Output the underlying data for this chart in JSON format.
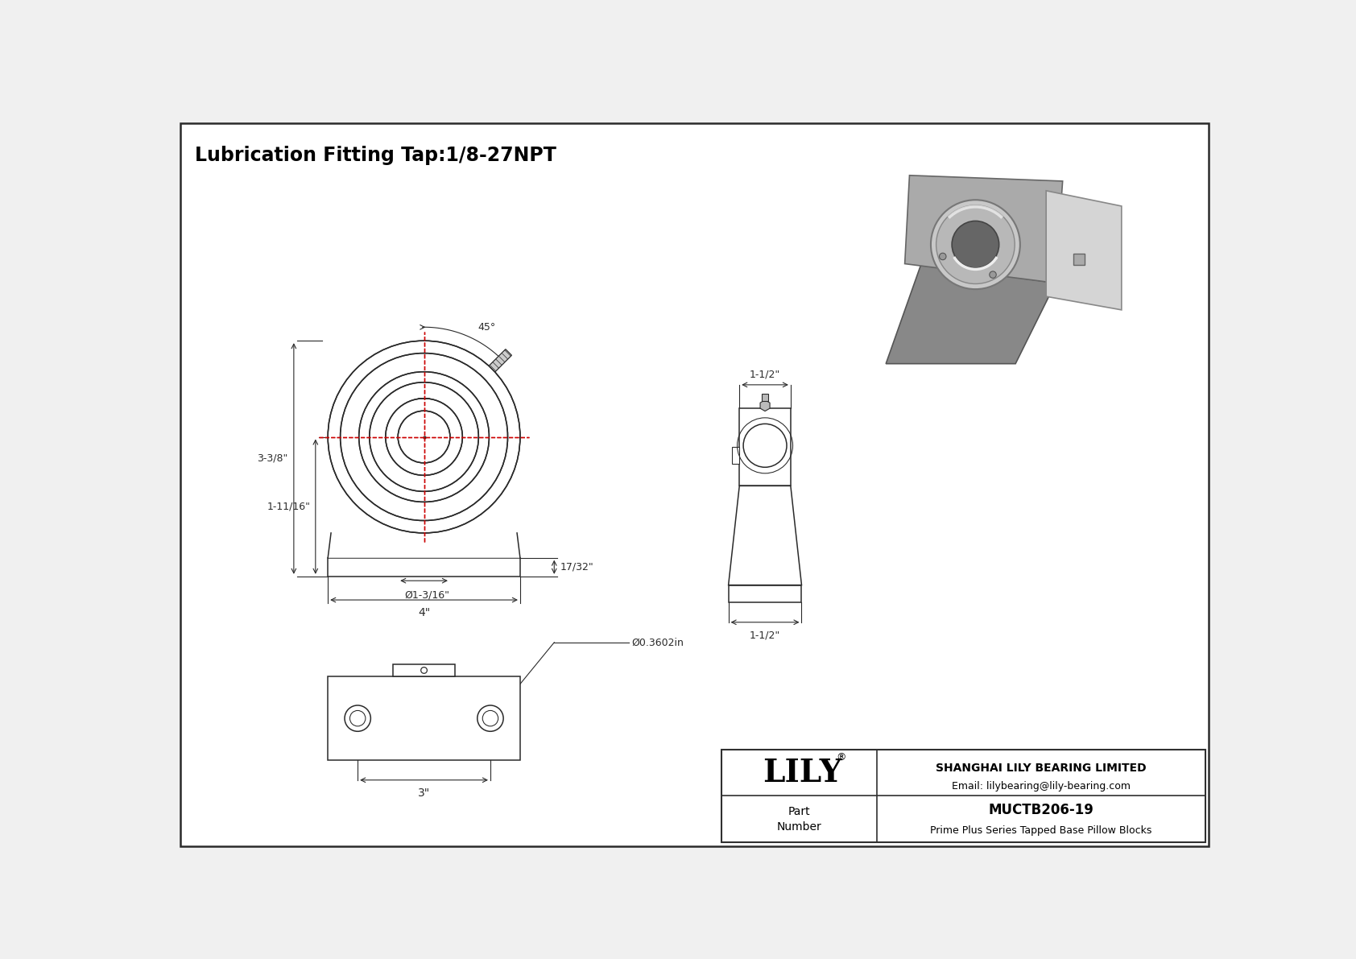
{
  "bg_color": "#f0f0f0",
  "line_color": "#2a2a2a",
  "dim_color": "#2a2a2a",
  "red_color": "#cc0000",
  "title": "Lubrication Fitting Tap:1/8-27NPT",
  "title_fontsize": 17,
  "company": "SHANGHAI LILY BEARING LIMITED",
  "email": "Email: lilybearing@lily-bearing.com",
  "part_label": "Part\nNumber",
  "part_number": "MUCTB206-19",
  "part_desc": "Prime Plus Series Tapped Base Pillow Blocks",
  "lily_text": "LILY",
  "dim_labels": {
    "top_width": "4\"",
    "bearing_dia": "Ø1-3/16\"",
    "height_total": "3-3/8\"",
    "height_base": "1-11/16\"",
    "offset": "17/32\"",
    "angle": "45°",
    "side_top": "1-1/2\"",
    "side_bot": "1-1/2\"",
    "bolt_span": "3\"",
    "hole_dia": "Ø0.3602in"
  }
}
